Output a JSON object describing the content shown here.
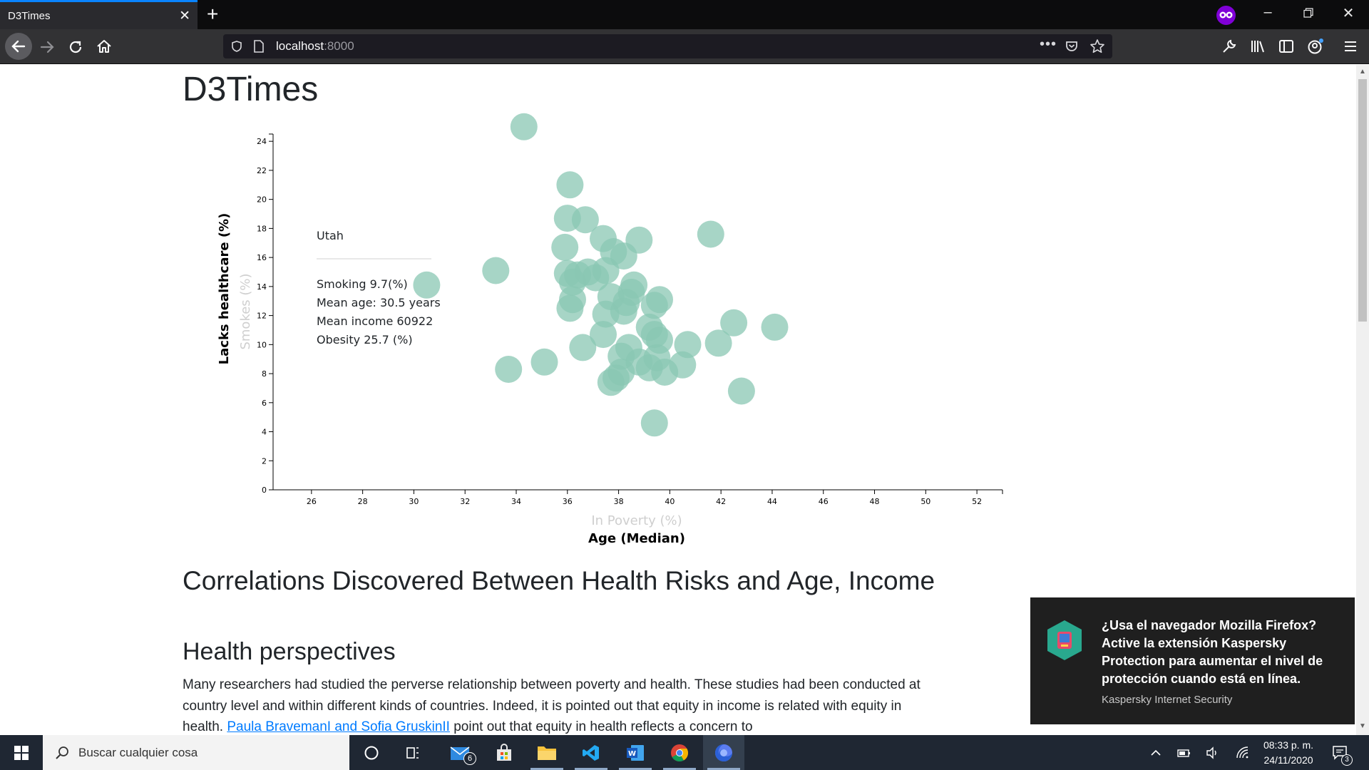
{
  "browser": {
    "tab_title": "D3Times",
    "tab_close": "✕",
    "new_tab": "+",
    "url_host": "localhost",
    "url_port": ":8000",
    "url_more": "•••"
  },
  "page": {
    "title": "D3Times"
  },
  "tooltip": {
    "name": "Utah",
    "lines": [
      "Smoking 9.7(%)",
      "Mean age: 30.5 years",
      "Mean income 60922",
      "Obesity 25.7 (%)"
    ]
  },
  "chart_data": {
    "type": "scatter",
    "xlabel_active": "Age (Median)",
    "xlabel_inactive": "In Poverty (%)",
    "ylabel_active": "Lacks healthcare (%)",
    "ylabel_inactive": "Smokes (%)",
    "xlim": [
      24.5,
      53
    ],
    "ylim": [
      0,
      24.5
    ],
    "x_ticks": [
      26,
      28,
      30,
      32,
      34,
      36,
      38,
      40,
      42,
      44,
      46,
      48,
      50,
      52
    ],
    "y_ticks": [
      0,
      2,
      4,
      6,
      8,
      10,
      12,
      14,
      16,
      18,
      20,
      22,
      24
    ],
    "marker_color": "#89c7b3",
    "points": [
      [
        34.3,
        25
      ],
      [
        36.1,
        21
      ],
      [
        36,
        18.7
      ],
      [
        36.7,
        18.6
      ],
      [
        37.4,
        17.3
      ],
      [
        38.8,
        17.2
      ],
      [
        41.6,
        17.6
      ],
      [
        35.9,
        16.7
      ],
      [
        37.8,
        16.4
      ],
      [
        38.2,
        16.1
      ],
      [
        33.2,
        15.1
      ],
      [
        30.5,
        14.1
      ],
      [
        36,
        14.9
      ],
      [
        36.4,
        14.8
      ],
      [
        36.8,
        15
      ],
      [
        37.1,
        14.6
      ],
      [
        37.5,
        15.1
      ],
      [
        36.2,
        14.3
      ],
      [
        38.6,
        14.1
      ],
      [
        38.5,
        13.6
      ],
      [
        37.7,
        13.3
      ],
      [
        38.3,
        12.9
      ],
      [
        39.6,
        13.1
      ],
      [
        39.4,
        12.7
      ],
      [
        36.2,
        13.1
      ],
      [
        36.1,
        12.5
      ],
      [
        37.5,
        12.1
      ],
      [
        38.2,
        12.3
      ],
      [
        39.2,
        11.2
      ],
      [
        39.4,
        10.7
      ],
      [
        39.6,
        10.3
      ],
      [
        40.7,
        10
      ],
      [
        41.9,
        10.1
      ],
      [
        42.5,
        11.5
      ],
      [
        44.1,
        11.2
      ],
      [
        37.4,
        10.7
      ],
      [
        36.6,
        9.8
      ],
      [
        35.1,
        8.8
      ],
      [
        33.7,
        8.3
      ],
      [
        38.4,
        9.8
      ],
      [
        38.1,
        9.2
      ],
      [
        38.8,
        8.8
      ],
      [
        39.5,
        9.1
      ],
      [
        39.2,
        8.4
      ],
      [
        39.8,
        8.1
      ],
      [
        40.5,
        8.6
      ],
      [
        38.1,
        8.1
      ],
      [
        37.9,
        7.7
      ],
      [
        37.7,
        7.4
      ],
      [
        42.8,
        6.8
      ],
      [
        39.4,
        4.6
      ]
    ]
  },
  "article": {
    "h2": "Correlations Discovered Between Health Risks and Age, Income",
    "h3": "Health perspectives",
    "p_text_1": "Many researchers had studied the perverse relationship between poverty and health. These studies had been conducted at country level and within different kinds of countries. Indeed, it is pointed out that equity in income is related with equity in health. ",
    "p_link": "Paula BravemanI and Sofia GruskinII",
    "p_text_2": " point out that equity in health reflects a concern to"
  },
  "toast": {
    "message": "¿Usa el navegador Mozilla Firefox? Active la extensión Kaspersky Protection para aumentar el nivel de protección cuando está en línea.",
    "app": "Kaspersky Internet Security"
  },
  "taskbar": {
    "search_placeholder": "Buscar cualquier cosa",
    "mail_badge": "6",
    "time": "08:33 p. m.",
    "date": "24/11/2020",
    "notif_count": "3"
  }
}
